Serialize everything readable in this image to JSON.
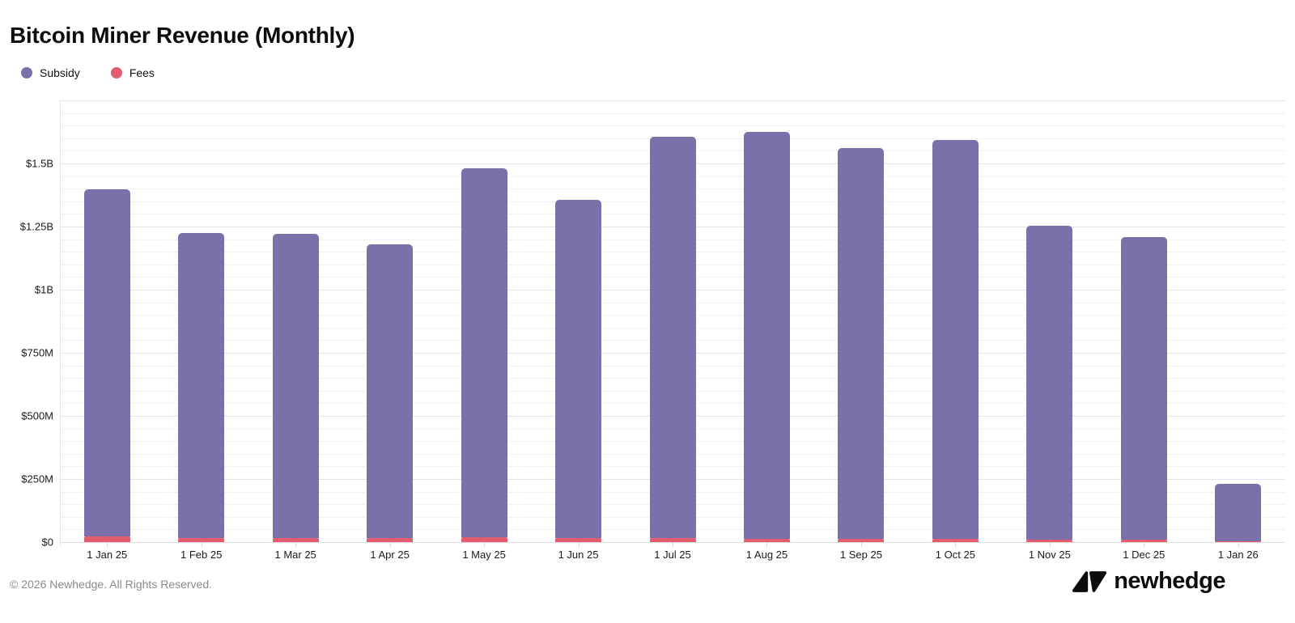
{
  "header": {
    "title": "Bitcoin Miner Revenue (Monthly)"
  },
  "chart_data": {
    "type": "bar",
    "stacked": true,
    "title": "Bitcoin Miner Revenue (Monthly)",
    "unit": "$M",
    "categories": [
      "1 Jan 25",
      "1 Feb 25",
      "1 Mar 25",
      "1 Apr 25",
      "1 May 25",
      "1 Jun 25",
      "1 Jul 25",
      "1 Aug 25",
      "1 Sep 25",
      "1 Oct 25",
      "1 Nov 25",
      "1 Dec 25",
      "1 Jan 26"
    ],
    "series": [
      {
        "name": "Subsidy",
        "color": "#7c70ab",
        "values": [
          1375,
          1207,
          1203,
          1164,
          1462,
          1340,
          1591,
          1614,
          1548,
          1579,
          1242,
          1197,
          229
        ]
      },
      {
        "name": "Fees",
        "color": "#e25b6e",
        "values": [
          21,
          16,
          17,
          16,
          20,
          15,
          15,
          12,
          12,
          13,
          10,
          10,
          3
        ]
      }
    ],
    "totals_M": [
      1396,
      1223,
      1220,
      1180,
      1482,
      1355,
      1606,
      1626,
      1560,
      1592,
      1252,
      1207,
      232
    ],
    "ylim": [
      0,
      1750
    ],
    "gridline_step_M": 50,
    "major_step_M": 250,
    "y_ticks": [
      {
        "label": "$1.5B",
        "value": 1500
      },
      {
        "label": "$1.25B",
        "value": 1250
      },
      {
        "label": "$1B",
        "value": 1000
      },
      {
        "label": "$750M",
        "value": 750
      },
      {
        "label": "$500M",
        "value": 500
      },
      {
        "label": "$250M",
        "value": 250
      },
      {
        "label": "$0",
        "value": 0
      }
    ],
    "legend_position": "top-left",
    "grid": true
  },
  "footer": {
    "copyright": "© 2026 Newhedge. All Rights Reserved."
  },
  "logo": {
    "text": "newhedge"
  }
}
